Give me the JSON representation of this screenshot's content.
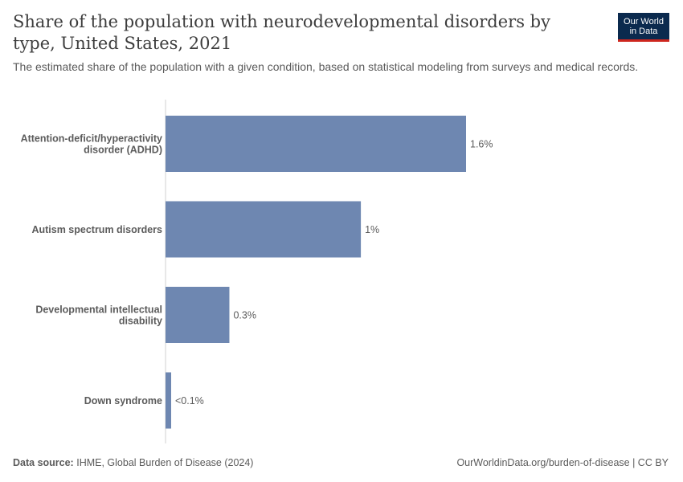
{
  "title": "Share of the population with neurodevelopmental disorders by type, United States, 2021",
  "subtitle": "The estimated share of the population with a given condition, based on statistical modeling from surveys and medical records.",
  "logo": {
    "line1": "Our World",
    "line2": "in Data"
  },
  "footer": {
    "source_label": "Data source:",
    "source_text": "IHME, Global Burden of Disease (2024)",
    "attribution": "OurWorldinData.org/burden-of-disease | CC BY"
  },
  "colors": {
    "bar": "#6e87b1",
    "axis": "#d0d0d0",
    "logo_bg": "#0b2a4e",
    "logo_accent": "#ce261e"
  },
  "chart_data": {
    "type": "bar",
    "orientation": "horizontal",
    "unit": "%",
    "xlim": [
      0,
      1.6
    ],
    "categories": [
      [
        "Attention-deficit/hyperactivity",
        "disorder (ADHD)"
      ],
      [
        "Autism spectrum disorders"
      ],
      [
        "Developmental intellectual",
        "disability"
      ],
      [
        "Down syndrome"
      ]
    ],
    "values": [
      1.6,
      1.04,
      0.34,
      0.03
    ],
    "data_labels": [
      "1.6%",
      "1%",
      "0.3%",
      "<0.1%"
    ]
  }
}
